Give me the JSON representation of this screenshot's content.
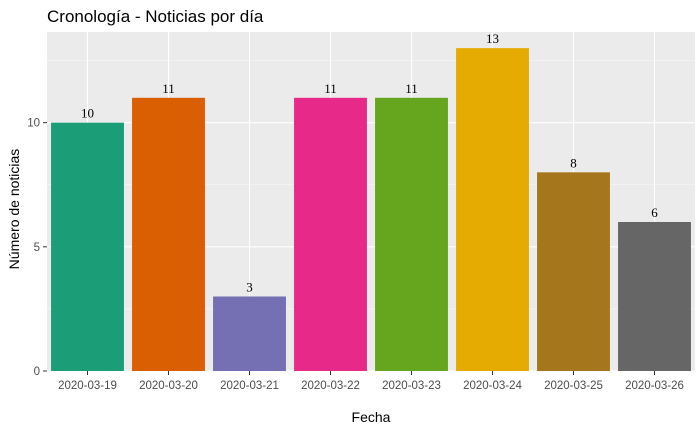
{
  "chart_data": {
    "type": "bar",
    "title": "Cronología - Noticias por día",
    "xlabel": "Fecha",
    "ylabel": "Número de noticias",
    "categories": [
      "2020-03-19",
      "2020-03-20",
      "2020-03-21",
      "2020-03-22",
      "2020-03-23",
      "2020-03-24",
      "2020-03-25",
      "2020-03-26"
    ],
    "values": [
      10,
      11,
      3,
      11,
      11,
      13,
      8,
      6
    ],
    "data_labels": [
      "10",
      "11",
      "3",
      "11",
      "11",
      "13",
      "8",
      "6"
    ],
    "ylim": [
      0,
      13.65
    ],
    "yticks": [
      0,
      5,
      10
    ],
    "ytick_labels": [
      "0",
      "5",
      "10"
    ],
    "colors": [
      "#1b9e77",
      "#d95f02",
      "#7570b3",
      "#e7298a",
      "#66a61e",
      "#e6ab02",
      "#a6761d",
      "#666666"
    ],
    "panel_background": "#ebebeb",
    "grid": true,
    "legend": "none"
  }
}
